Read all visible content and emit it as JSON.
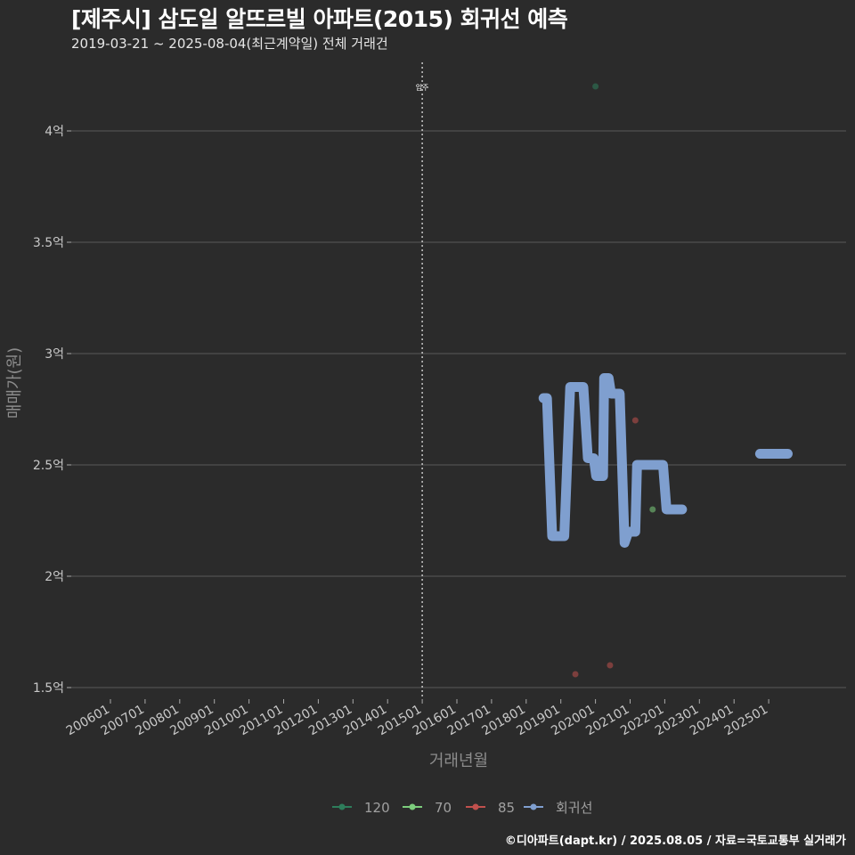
{
  "header": {
    "title": "[제주시] 삼도일 알뜨르빌 아파트(2015) 회귀선 예측",
    "subtitle": "2019-03-21 ~ 2025-08-04(최근계약일) 전체 거래건",
    "caption": "©디아파트(dapt.kr) / 2025.08.05 / 자료=국토교통부 실거래가"
  },
  "chart_data": {
    "type": "line",
    "title": "[제주시] 삼도일 알뜨르빌 아파트(2015) 회귀선 예측",
    "xlabel": "거래년월",
    "ylabel": "매매가(원)",
    "ylim": [
      1.5,
      4.2
    ],
    "x_ticks": [
      "200601",
      "200701",
      "200801",
      "200901",
      "201001",
      "201101",
      "201201",
      "201301",
      "201401",
      "201501",
      "201601",
      "201701",
      "201801",
      "201901",
      "202001",
      "202101",
      "202201",
      "202301",
      "202401",
      "202501"
    ],
    "y_ticks": [
      {
        "value": 1.5,
        "label": "1.5억"
      },
      {
        "value": 2.0,
        "label": "2억"
      },
      {
        "value": 2.5,
        "label": "2.5억"
      },
      {
        "value": 3.0,
        "label": "3억"
      },
      {
        "value": 3.5,
        "label": "3.5억"
      },
      {
        "value": 4.0,
        "label": "4억"
      }
    ],
    "annotation": {
      "label": "입주",
      "x": 2015.0
    },
    "legend": [
      "120",
      "70",
      "85",
      "회귀선"
    ],
    "colors": {
      "120": "#2e7d5b",
      "70": "#7ccd7c",
      "85": "#c0504d",
      "회귀선": "#7f9fcf"
    },
    "series": [
      {
        "name": "120",
        "points": [
          {
            "x": 2020.0,
            "y": 4.2
          }
        ]
      },
      {
        "name": "70",
        "points": [
          {
            "x": 2021.65,
            "y": 2.3
          }
        ]
      },
      {
        "name": "85",
        "points": [
          {
            "x": 2019.42,
            "y": 1.56
          },
          {
            "x": 2020.42,
            "y": 1.6
          },
          {
            "x": 2021.15,
            "y": 2.7
          }
        ]
      }
    ],
    "regression": {
      "name": "회귀선",
      "points": [
        {
          "x": 2018.5,
          "y": 2.8
        },
        {
          "x": 2018.6,
          "y": 2.8
        },
        {
          "x": 2018.75,
          "y": 2.18
        },
        {
          "x": 2019.1,
          "y": 2.18
        },
        {
          "x": 2019.27,
          "y": 2.85
        },
        {
          "x": 2019.65,
          "y": 2.85
        },
        {
          "x": 2019.78,
          "y": 2.53
        },
        {
          "x": 2019.95,
          "y": 2.53
        },
        {
          "x": 2020.02,
          "y": 2.45
        },
        {
          "x": 2020.22,
          "y": 2.45
        },
        {
          "x": 2020.25,
          "y": 2.89
        },
        {
          "x": 2020.38,
          "y": 2.89
        },
        {
          "x": 2020.45,
          "y": 2.82
        },
        {
          "x": 2020.7,
          "y": 2.82
        },
        {
          "x": 2020.84,
          "y": 2.15
        },
        {
          "x": 2020.95,
          "y": 2.2
        },
        {
          "x": 2021.15,
          "y": 2.2
        },
        {
          "x": 2021.2,
          "y": 2.5
        },
        {
          "x": 2021.95,
          "y": 2.5
        },
        {
          "x": 2022.05,
          "y": 2.3
        },
        {
          "x": 2022.5,
          "y": 2.3
        }
      ]
    },
    "regression_extra": [
      {
        "x": 2024.75,
        "y": 2.55
      },
      {
        "x": 2025.55,
        "y": 2.55
      }
    ]
  }
}
